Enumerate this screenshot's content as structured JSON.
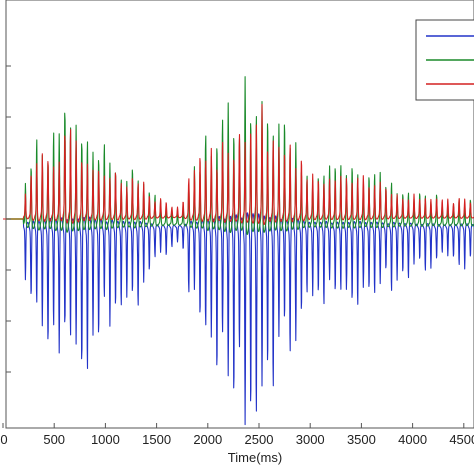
{
  "chart_data": {
    "type": "line",
    "title": "",
    "xlabel": "Time(ms)",
    "ylabel": "",
    "xlim": [
      0,
      4700
    ],
    "ylim": [
      -3.9,
      3.2
    ],
    "xticks": [
      0,
      500,
      1000,
      1500,
      2000,
      2500,
      3000,
      3500,
      4000,
      4500
    ],
    "xtick_labels": [
      "0",
      "500",
      "1000",
      "1500",
      "2000",
      "2500",
      "3000",
      "3500",
      "4000",
      "4500"
    ],
    "yticks": [
      -3,
      -2,
      -1,
      0,
      1,
      2,
      3
    ],
    "grid": false,
    "legend": "top-right",
    "colors": {
      "blue": "#2233c8",
      "green": "#1a8a2a",
      "red": "#d42020",
      "baseline": "#8a6a10"
    },
    "signal": {
      "onset_ms": 200,
      "cycle_ms": 55,
      "envelope": {
        "x": [
          200,
          300,
          500,
          700,
          900,
          1100,
          1300,
          1500,
          1650,
          1750,
          1850,
          2100,
          2300,
          2450,
          2550,
          2700,
          2900,
          3100,
          3400,
          3700,
          4000,
          4300,
          4600,
          4700
        ],
        "y": [
          0.6,
          1.3,
          1.6,
          1.95,
          1.4,
          1.05,
          0.95,
          0.45,
          0.25,
          0.3,
          1.1,
          1.7,
          2.1,
          2.65,
          2.5,
          1.85,
          1.3,
          0.9,
          0.9,
          0.8,
          0.55,
          0.45,
          0.5,
          0.6
        ]
      },
      "series": [
        {
          "color": "blue",
          "gain": -1.35,
          "bias": -0.15
        },
        {
          "color": "green",
          "gain": 1.0,
          "bias": -0.1
        },
        {
          "color": "red",
          "gain": 0.72,
          "bias": 0.04
        }
      ]
    }
  }
}
